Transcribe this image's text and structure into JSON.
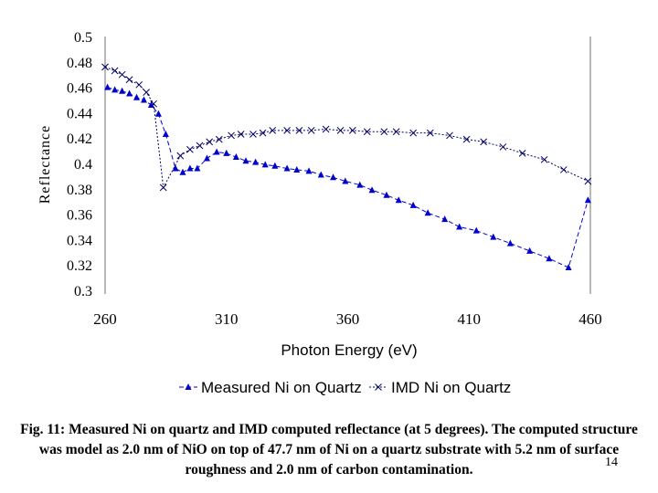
{
  "chart_data": {
    "type": "line",
    "title": "",
    "xlabel": "Photon Energy (eV)",
    "ylabel": "Reflectance",
    "xlim": [
      260,
      460
    ],
    "ylim": [
      0.3,
      0.5
    ],
    "xticks": [
      "260",
      "310",
      "360",
      "410",
      "460"
    ],
    "yticks": [
      "0.3",
      "0.32",
      "0.34",
      "0.36",
      "0.38",
      "0.4",
      "0.42",
      "0.44",
      "0.46",
      "0.48",
      "0.5"
    ],
    "grid": false,
    "legend_position": "bottom",
    "series": [
      {
        "name": "Measured Ni on Quartz",
        "marker": "triangle",
        "line": "dashed",
        "color": "#0000CC",
        "x": [
          261,
          264,
          267,
          270,
          273,
          276,
          279,
          282,
          285,
          289,
          292,
          295,
          298,
          302,
          306,
          310,
          314,
          318,
          322,
          326,
          330,
          335,
          339,
          344,
          349,
          354,
          359,
          365,
          370,
          376,
          381,
          387,
          393,
          400,
          406,
          413,
          420,
          427,
          435,
          443,
          451,
          459
        ],
        "y": [
          0.46,
          0.458,
          0.457,
          0.455,
          0.452,
          0.45,
          0.446,
          0.439,
          0.423,
          0.396,
          0.393,
          0.396,
          0.396,
          0.404,
          0.409,
          0.408,
          0.405,
          0.402,
          0.401,
          0.399,
          0.398,
          0.396,
          0.395,
          0.394,
          0.391,
          0.389,
          0.386,
          0.383,
          0.379,
          0.375,
          0.371,
          0.367,
          0.361,
          0.356,
          0.35,
          0.347,
          0.342,
          0.337,
          0.331,
          0.325,
          0.318,
          0.371
        ]
      },
      {
        "name": "IMD Ni on Quartz",
        "marker": "x",
        "line": "dotted",
        "color": "#000066",
        "x": [
          260,
          264,
          267,
          270,
          274,
          277,
          280,
          284,
          291,
          295,
          299,
          303,
          307,
          312,
          316,
          321,
          325,
          329,
          335,
          340,
          345,
          351,
          357,
          362,
          368,
          375,
          380,
          387,
          394,
          402,
          409,
          416,
          424,
          432,
          441,
          449,
          459
        ],
        "y": [
          0.476,
          0.473,
          0.47,
          0.466,
          0.462,
          0.456,
          0.447,
          0.381,
          0.406,
          0.411,
          0.414,
          0.417,
          0.419,
          0.422,
          0.423,
          0.423,
          0.424,
          0.426,
          0.426,
          0.426,
          0.426,
          0.427,
          0.426,
          0.426,
          0.425,
          0.425,
          0.425,
          0.424,
          0.424,
          0.422,
          0.419,
          0.417,
          0.413,
          0.408,
          0.403,
          0.395,
          0.386
        ]
      }
    ]
  },
  "caption": "Fig. 11: Measured Ni on quartz and IMD computed reflectance (at 5 degrees).  The computed structure was model as 2.0 nm of NiO on top of 47.7 nm of Ni on a quartz substrate with 5.2 nm of surface roughness and 2.0 nm of carbon contamination.",
  "page_number": "14"
}
